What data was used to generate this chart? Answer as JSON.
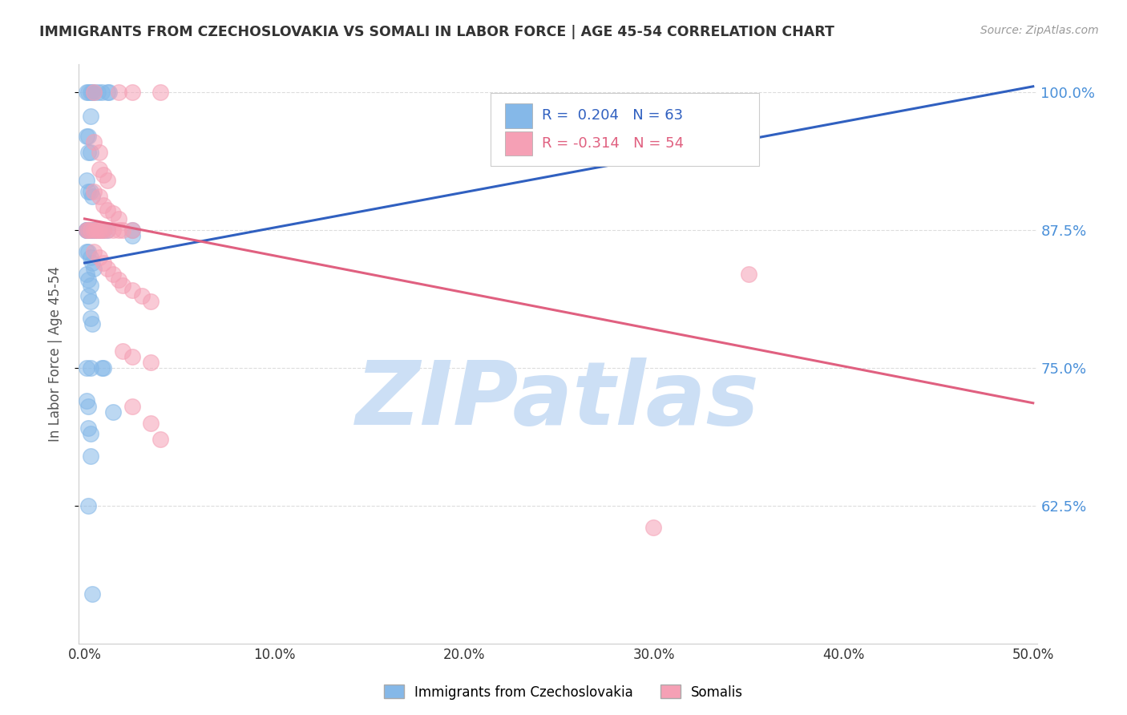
{
  "title": "IMMIGRANTS FROM CZECHOSLOVAKIA VS SOMALI IN LABOR FORCE | AGE 45-54 CORRELATION CHART",
  "source": "Source: ZipAtlas.com",
  "ylabel": "In Labor Force | Age 45-54",
  "xlim": [
    -0.003,
    0.502
  ],
  "ylim": [
    0.5,
    1.025
  ],
  "yticks": [
    0.625,
    0.75,
    0.875,
    1.0
  ],
  "ytick_labels": [
    "62.5%",
    "75.0%",
    "87.5%",
    "100.0%"
  ],
  "xticks": [
    0.0,
    0.1,
    0.2,
    0.3,
    0.4,
    0.5
  ],
  "xtick_labels": [
    "0.0%",
    "10.0%",
    "20.0%",
    "30.0%",
    "40.0%",
    "50.0%"
  ],
  "legend_label_blue": "Immigrants from Czechoslovakia",
  "legend_label_pink": "Somalis",
  "blue_color": "#85b8e8",
  "pink_color": "#f5a0b5",
  "blue_line_color": "#3060c0",
  "pink_line_color": "#e06080",
  "watermark": "ZIPatlas",
  "watermark_color": "#ccdff5",
  "title_color": "#333333",
  "tick_color_right": "#4a90d9",
  "background_color": "#ffffff",
  "grid_color": "#dddddd",
  "blue_trend_x0": 0.0,
  "blue_trend_y0": 0.845,
  "blue_trend_x1": 0.5,
  "blue_trend_y1": 1.005,
  "pink_trend_x0": 0.0,
  "pink_trend_y0": 0.885,
  "pink_trend_x1": 0.5,
  "pink_trend_y1": 0.718
}
